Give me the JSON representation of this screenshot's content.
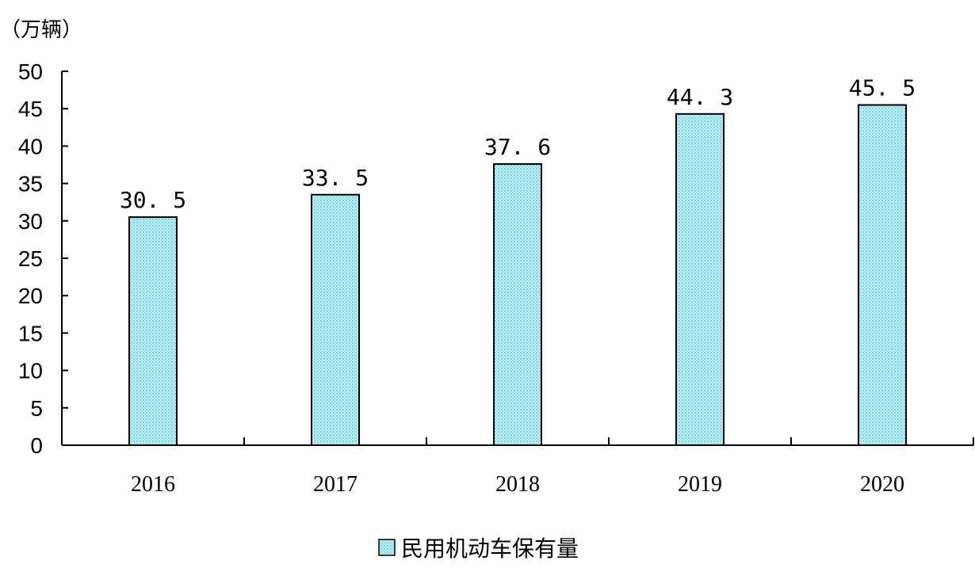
{
  "chart_data": {
    "type": "bar",
    "unit_label": "（万辆）",
    "categories": [
      "2016",
      "2017",
      "2018",
      "2019",
      "2020"
    ],
    "series": [
      {
        "name": "民用机动车保有量",
        "values": [
          30.5,
          33.5,
          37.6,
          44.3,
          45.5
        ],
        "value_labels": [
          "30. 5",
          "33. 5",
          "37. 6",
          "44. 3",
          "45. 5"
        ],
        "fill": "#a8e6ee",
        "edge": "#000000"
      }
    ],
    "ylim": [
      0,
      50
    ],
    "yticks": [
      0,
      5,
      10,
      15,
      20,
      25,
      30,
      35,
      40,
      45,
      50
    ],
    "grid": false,
    "legend_position": "bottom-center"
  }
}
